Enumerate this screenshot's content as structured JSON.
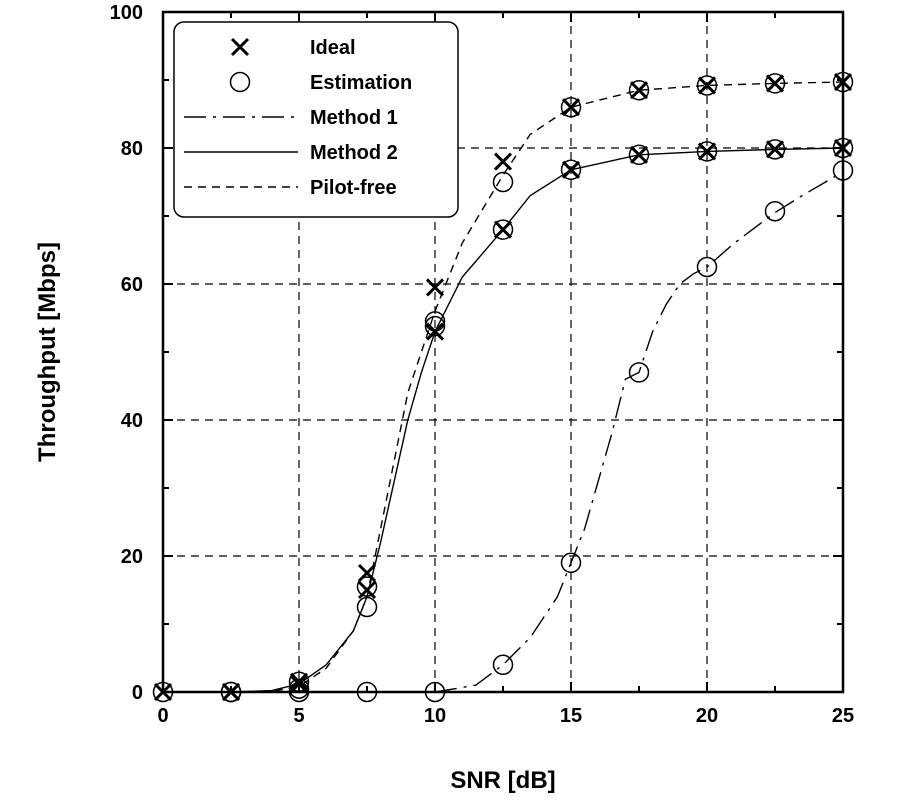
{
  "chart_data": {
    "type": "line",
    "xlabel": "SNR [dB]",
    "ylabel": "Throughput [Mbps]",
    "xlim": [
      0,
      25
    ],
    "ylim": [
      0,
      100
    ],
    "xticks": [
      0,
      5,
      10,
      15,
      20,
      25
    ],
    "yticks": [
      0,
      20,
      40,
      60,
      80,
      100
    ],
    "grid": true,
    "legend_position": "top-left",
    "legend": [
      {
        "label": "Ideal",
        "kind": "marker",
        "marker": "x"
      },
      {
        "label": "Estimation",
        "kind": "marker",
        "marker": "o"
      },
      {
        "label": "Method 1",
        "kind": "line",
        "dash": "dashdot"
      },
      {
        "label": "Method 2",
        "kind": "line",
        "dash": "solid"
      },
      {
        "label": "Pilot-free",
        "kind": "line",
        "dash": "dashed"
      }
    ],
    "series": [
      {
        "name": "Method 1",
        "line_style": "dashdot",
        "x": [
          10,
          11.5,
          12.5,
          13.5,
          14.5,
          15,
          15.5,
          16,
          16.5,
          17,
          17.5,
          18,
          18.5,
          19,
          19.5,
          20,
          21,
          22.5,
          23.5,
          25
        ],
        "y": [
          0,
          1,
          4,
          8,
          14,
          19,
          24,
          31,
          38,
          46,
          47,
          53,
          57,
          60,
          61.5,
          62.5,
          66,
          70.5,
          73,
          76.5
        ],
        "ideal_x": [],
        "ideal_y": [],
        "estimation_x": [
          0,
          2.5,
          5,
          7.5,
          10,
          12.5,
          15,
          17.5,
          20,
          22.5,
          25
        ],
        "estimation_y": [
          0,
          0,
          0,
          0,
          0,
          4,
          19,
          47,
          62.5,
          70.7,
          76.7
        ]
      },
      {
        "name": "Method 2",
        "line_style": "solid",
        "x": [
          0,
          2.5,
          4,
          5,
          6,
          7,
          7.5,
          8,
          8.5,
          9,
          9.5,
          10,
          11,
          12.5,
          13.5,
          15,
          17.5,
          20,
          22.5,
          25
        ],
        "y": [
          0,
          0,
          0.2,
          1.2,
          4,
          9,
          14,
          22,
          31,
          40,
          47,
          53,
          61,
          68,
          73,
          76.8,
          79,
          79.5,
          79.8,
          80
        ],
        "ideal_x": [
          2.5,
          5,
          7.5,
          10,
          12.5,
          15,
          17.5,
          20,
          22.5,
          25
        ],
        "ideal_y": [
          0,
          1.2,
          15,
          53,
          68,
          76.8,
          79,
          79.5,
          79.8,
          80
        ],
        "estimation_x": [
          2.5,
          5,
          7.5,
          10,
          12.5,
          15,
          17.5,
          20,
          22.5,
          25
        ],
        "estimation_y": [
          0,
          1.5,
          15.5,
          53.8,
          68,
          76.8,
          79,
          79.5,
          79.8,
          80
        ]
      },
      {
        "name": "Pilot-free",
        "line_style": "dashed",
        "x": [
          0,
          2.5,
          4,
          5,
          6,
          7,
          7.5,
          8,
          8.5,
          9,
          9.5,
          10,
          11,
          12.5,
          13.5,
          15,
          17.5,
          20,
          22.5,
          25
        ],
        "y": [
          0,
          0,
          0.1,
          0.8,
          3.5,
          9,
          14,
          24,
          34,
          44,
          50,
          56,
          66,
          76,
          82,
          86,
          88.5,
          89.2,
          89.5,
          89.7
        ],
        "ideal_x": [
          0,
          2.5,
          5,
          7.5,
          10,
          12.5,
          15,
          17.5,
          20,
          22.5,
          25
        ],
        "ideal_y": [
          0,
          0,
          1.5,
          17.5,
          59.5,
          78,
          86,
          88.5,
          89.2,
          89.5,
          89.7
        ],
        "estimation_x": [
          2.5,
          5,
          7.5,
          10,
          12.5,
          15,
          17.5,
          20,
          22.5,
          25
        ],
        "estimation_y": [
          0,
          0.5,
          12.5,
          54.5,
          75,
          86,
          88.5,
          89.2,
          89.5,
          89.7
        ]
      }
    ]
  }
}
